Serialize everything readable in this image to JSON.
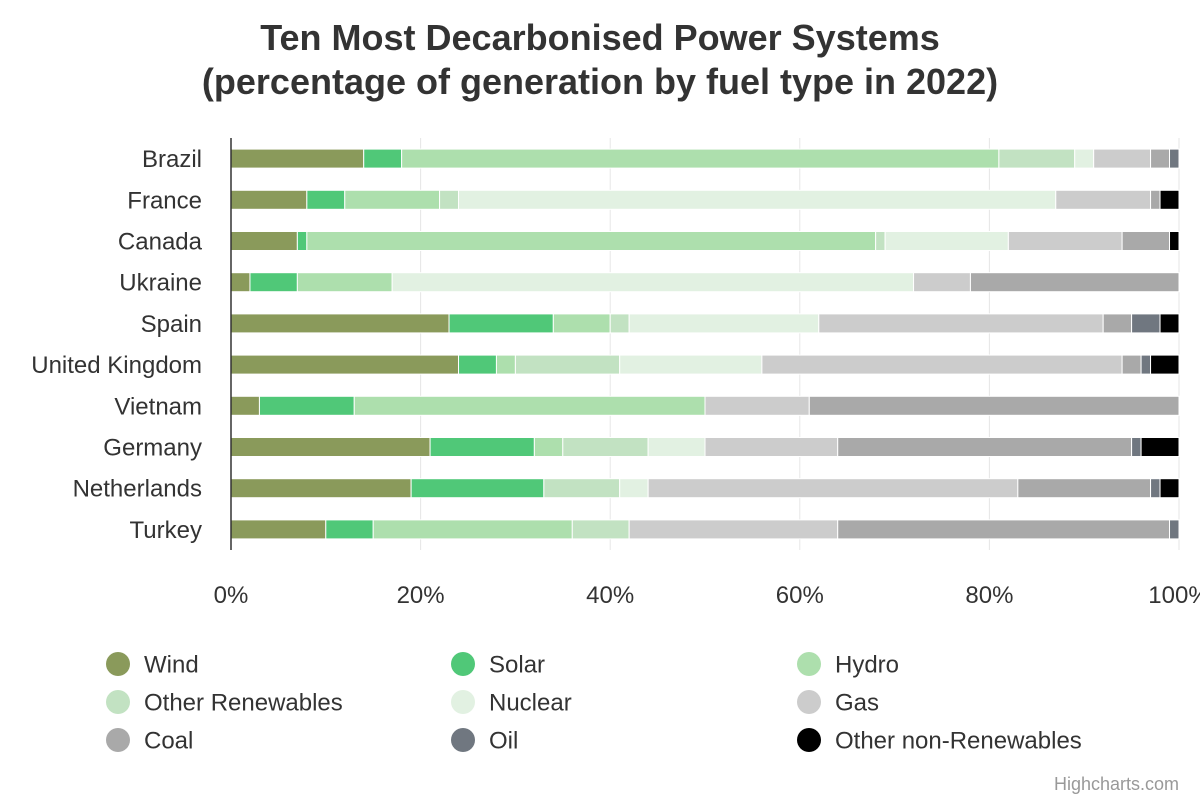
{
  "chart_data": {
    "type": "bar",
    "stacking": "percent",
    "orientation": "horizontal",
    "title": "Ten Most Decarbonised Power Systems",
    "subtitle": "(percentage of generation by fuel type in 2022)",
    "categories": [
      "Brazil",
      "France",
      "Canada",
      "Ukraine",
      "Spain",
      "United Kingdom",
      "Vietnam",
      "Germany",
      "Netherlands",
      "Turkey"
    ],
    "xlim": [
      0,
      100
    ],
    "ticks": [
      0,
      20,
      40,
      60,
      80,
      100
    ],
    "tick_labels": [
      "0%",
      "20%",
      "40%",
      "60%",
      "80%",
      "100%"
    ],
    "grid": true,
    "legend_position": "bottom",
    "series": [
      {
        "name": "Wind",
        "color": "#8a9a5b",
        "values": [
          14,
          8,
          7,
          2,
          23,
          24,
          3,
          21,
          19,
          10
        ]
      },
      {
        "name": "Solar",
        "color": "#50c878",
        "values": [
          4,
          4,
          1,
          5,
          11,
          4,
          10,
          11,
          14,
          5
        ]
      },
      {
        "name": "Hydro",
        "color": "#addfad",
        "values": [
          63,
          10,
          60,
          10,
          6,
          2,
          37,
          3,
          0,
          21
        ]
      },
      {
        "name": "Other Renewables",
        "color": "#c2e2c2",
        "values": [
          8,
          2,
          1,
          0,
          2,
          11,
          0,
          9,
          8,
          6
        ]
      },
      {
        "name": "Nuclear",
        "color": "#e2f1e2",
        "values": [
          2,
          63,
          13,
          55,
          20,
          15,
          0,
          6,
          3,
          0
        ]
      },
      {
        "name": "Gas",
        "color": "#cccccc",
        "values": [
          6,
          10,
          12,
          6,
          30,
          38,
          11,
          14,
          39,
          22
        ]
      },
      {
        "name": "Coal",
        "color": "#a9a9a9",
        "values": [
          2,
          1,
          5,
          22,
          3,
          2,
          39,
          31,
          14,
          35
        ]
      },
      {
        "name": "Oil",
        "color": "#707780",
        "values": [
          1,
          0,
          0,
          0,
          3,
          1,
          0,
          1,
          1,
          1
        ]
      },
      {
        "name": "Other non-Renewables",
        "color": "#000000",
        "values": [
          0,
          2,
          1,
          0,
          2,
          3,
          0,
          4,
          2,
          0
        ]
      }
    ]
  },
  "credits": "Highcharts.com"
}
